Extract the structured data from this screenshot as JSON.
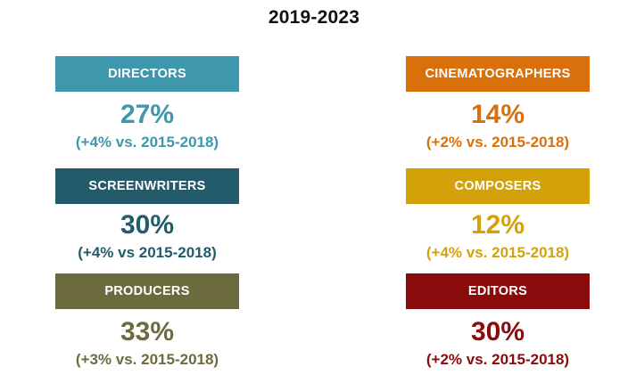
{
  "title": "2019-2023",
  "roles": {
    "directors": {
      "label": "DIRECTORS",
      "percent": "27%",
      "change": "(+4% vs. 2015-2018)",
      "color": "#3f97ad"
    },
    "screenwriters": {
      "label": "SCREENWRITERS",
      "percent": "30%",
      "change": "(+4% vs 2015-2018)",
      "color": "#235b6a"
    },
    "producers": {
      "label": "PRODUCERS",
      "percent": "33%",
      "change": "(+3% vs. 2015-2018)",
      "color": "#6c6b3f"
    },
    "cinematographers": {
      "label": "CINEMATOGRAPHERS",
      "percent": "14%",
      "change": "(+2% vs. 2015-2018)",
      "color": "#d9700c"
    },
    "composers": {
      "label": "COMPOSERS",
      "percent": "12%",
      "change": "(+4% vs. 2015-2018)",
      "color": "#d3a10a"
    },
    "editors": {
      "label": "EDITORS",
      "percent": "30%",
      "change": "(+2% vs. 2015-2018)",
      "color": "#8a0b0b"
    }
  }
}
